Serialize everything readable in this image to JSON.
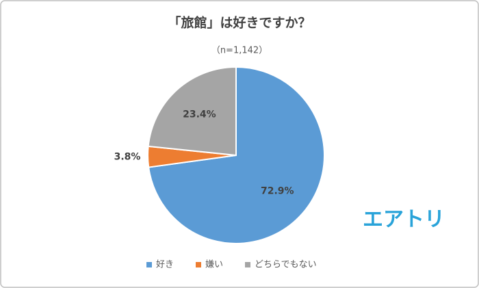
{
  "chart_data": {
    "type": "pie",
    "title": "「旅館」は好きですか？",
    "subtitle": "（n=1,142）",
    "categories": [
      "好き",
      "嫌い",
      "どちらでもない"
    ],
    "values": [
      72.9,
      3.8,
      23.4
    ],
    "value_labels": [
      "72.9%",
      "3.8%",
      "23.4%"
    ],
    "colors": [
      "#5b9bd5",
      "#ed7d31",
      "#a5a5a5"
    ],
    "legend": "bottom",
    "annotation": "エアトリ"
  }
}
